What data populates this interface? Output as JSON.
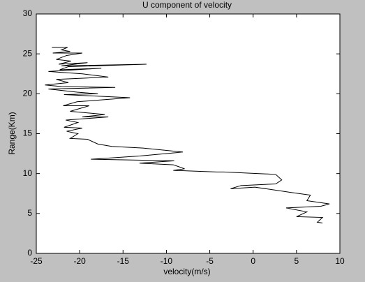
{
  "chart_data": {
    "type": "line",
    "title": "U component of velocity",
    "x_label": "velocity(m/s)",
    "y_label": "Range(Km)",
    "xlim": [
      -25,
      10
    ],
    "xticks": [
      -25,
      -20,
      -15,
      -10,
      -5,
      0,
      5,
      10
    ],
    "ylim": [
      0,
      30
    ],
    "yticks": [
      0,
      5,
      10,
      15,
      20,
      25,
      30
    ],
    "color": "#000000",
    "x": [
      -23.2,
      -21.4,
      -22.1,
      -21.1,
      -23.1,
      -19.7,
      -21.5,
      -22.7,
      -21.0,
      -22.4,
      -19.1,
      -22.1,
      -12.3,
      -21.3,
      -22.3,
      -17.5,
      -23.6,
      -19.7,
      -16.7,
      -22.7,
      -21.3,
      -24.0,
      -22.1,
      -15.9,
      -23.6,
      -20.3,
      -17.9,
      -21.8,
      -14.2,
      -20.3,
      -21.9,
      -18.9,
      -21.1,
      -17.1,
      -19.7,
      -16.7,
      -21.6,
      -20.2,
      -21.8,
      -19.7,
      -21.5,
      -20.2,
      -21.1,
      -19.1,
      -17.9,
      -16.3,
      -12.7,
      -8.1,
      -13.1,
      -18.7,
      -9.1,
      -13.1,
      -9.2,
      -7.9,
      -9.2,
      -4.2,
      -3.4,
      2.6,
      3.3,
      2.6,
      -1.4,
      -2.6,
      0.2,
      4.6,
      6.6,
      6.2,
      8.8,
      7.8,
      3.8,
      6.2,
      5.0,
      8.0,
      7.4,
      8.0
    ],
    "values": [
      25.8,
      25.8,
      25.5,
      25.3,
      25.1,
      25.1,
      24.8,
      24.3,
      24.1,
      23.7,
      23.9,
      23.5,
      23.7,
      23.4,
      23.0,
      23.2,
      22.8,
      22.5,
      22.1,
      21.8,
      21.4,
      21.1,
      20.9,
      20.8,
      20.6,
      20.2,
      20.0,
      19.9,
      19.5,
      19.0,
      18.5,
      18.5,
      17.8,
      17.4,
      17.1,
      17.1,
      16.7,
      16.4,
      15.8,
      15.7,
      15.3,
      15.0,
      14.4,
      14.3,
      13.7,
      13.4,
      13.2,
      12.7,
      12.2,
      11.8,
      11.6,
      11.3,
      11.1,
      10.6,
      10.4,
      10.2,
      10.2,
      9.9,
      9.2,
      8.7,
      8.5,
      8.1,
      8.3,
      7.6,
      7.3,
      6.6,
      6.2,
      5.9,
      5.7,
      5.2,
      4.6,
      4.5,
      3.9,
      3.8
    ]
  }
}
